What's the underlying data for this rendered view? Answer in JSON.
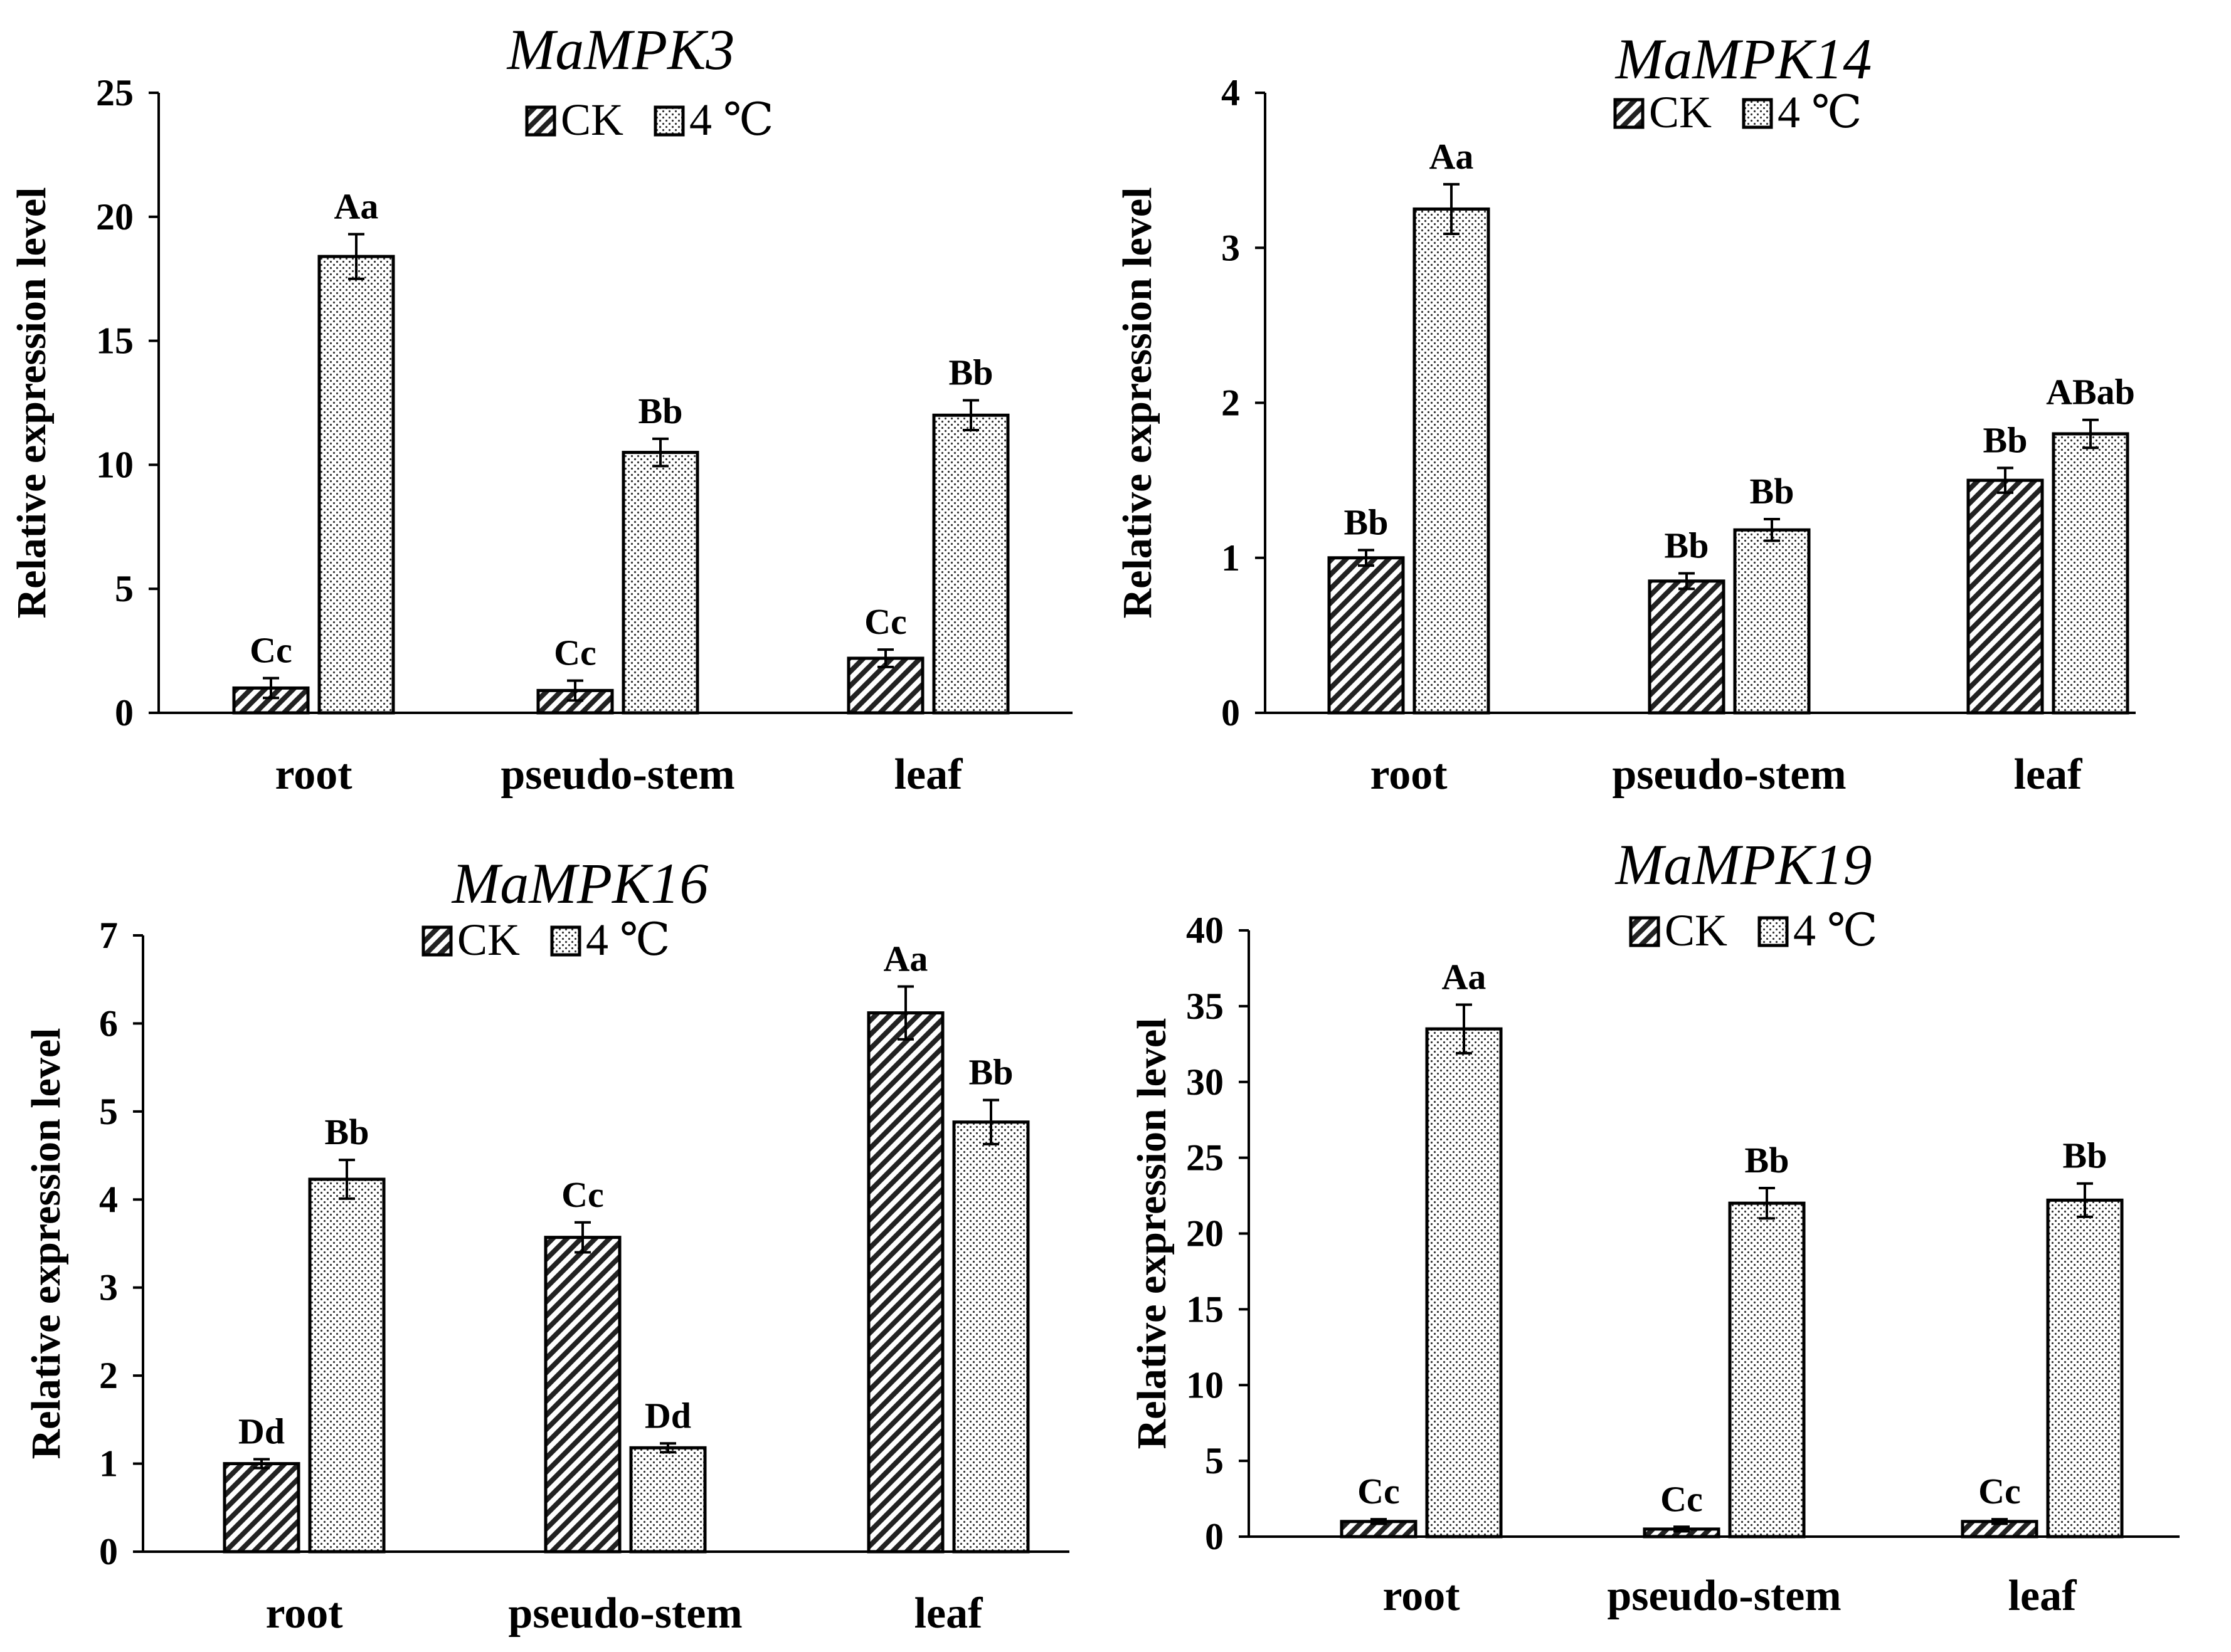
{
  "chart_data": [
    {
      "type": "bar",
      "title": "MaMPK3",
      "xlabel": "",
      "ylabel": "Relative expression level",
      "ylim": [
        0,
        25
      ],
      "yticks": [
        0,
        5,
        10,
        15,
        20,
        25
      ],
      "categories": [
        "root",
        "pseudo-stem",
        "leaf"
      ],
      "series": [
        {
          "name": "CK",
          "pattern": "hatch-diagonal",
          "values": [
            1.0,
            0.9,
            2.2
          ],
          "errors": [
            0.4,
            0.4,
            0.35
          ],
          "labels": [
            "Cc",
            "Cc",
            "Cc"
          ]
        },
        {
          "name": "4 ℃",
          "pattern": "dotted",
          "values": [
            18.4,
            10.5,
            12.0
          ],
          "errors": [
            0.9,
            0.55,
            0.6
          ],
          "labels": [
            "Aa",
            "Bb",
            "Bb"
          ]
        }
      ]
    },
    {
      "type": "bar",
      "title": "MaMPK14",
      "xlabel": "",
      "ylabel": "Relative expression level",
      "ylim": [
        0,
        4
      ],
      "yticks": [
        0,
        1,
        2,
        3,
        4
      ],
      "categories": [
        "root",
        "pseudo-stem",
        "leaf"
      ],
      "series": [
        {
          "name": "CK",
          "pattern": "hatch-diagonal",
          "values": [
            1.0,
            0.85,
            1.5
          ],
          "errors": [
            0.05,
            0.05,
            0.08
          ],
          "labels": [
            "Bb",
            "Bb",
            "Bb"
          ]
        },
        {
          "name": "4 ℃",
          "pattern": "dotted",
          "values": [
            3.25,
            1.18,
            1.8
          ],
          "errors": [
            0.16,
            0.07,
            0.09
          ],
          "labels": [
            "Aa",
            "Bb",
            "ABab"
          ]
        }
      ]
    },
    {
      "type": "bar",
      "title": "MaMPK16",
      "xlabel": "",
      "ylabel": "Relative expression level",
      "ylim": [
        0,
        7
      ],
      "yticks": [
        0,
        1,
        2,
        3,
        4,
        5,
        6,
        7
      ],
      "categories": [
        "root",
        "pseudo-stem",
        "leaf"
      ],
      "series": [
        {
          "name": "CK",
          "pattern": "hatch-diagonal",
          "values": [
            1.0,
            3.57,
            6.12
          ],
          "errors": [
            0.05,
            0.17,
            0.3
          ],
          "labels": [
            "Dd",
            "Cc",
            "Aa"
          ]
        },
        {
          "name": "4 ℃",
          "pattern": "dotted",
          "values": [
            4.23,
            1.18,
            4.88
          ],
          "errors": [
            0.22,
            0.05,
            0.25
          ],
          "labels": [
            "Bb",
            "Dd",
            "Bb"
          ]
        }
      ]
    },
    {
      "type": "bar",
      "title": "MaMPK19",
      "xlabel": "",
      "ylabel": "Relative expression level",
      "ylim": [
        0,
        40
      ],
      "yticks": [
        0,
        5,
        10,
        15,
        20,
        25,
        30,
        35,
        40
      ],
      "categories": [
        "root",
        "pseudo-stem",
        "leaf"
      ],
      "series": [
        {
          "name": "CK",
          "pattern": "hatch-diagonal",
          "values": [
            1.0,
            0.5,
            1.0
          ],
          "errors": [
            0.15,
            0.15,
            0.15
          ],
          "labels": [
            "Cc",
            "Cc",
            "Cc"
          ]
        },
        {
          "name": "4 ℃",
          "pattern": "dotted",
          "values": [
            33.5,
            22.0,
            22.2
          ],
          "errors": [
            1.6,
            1.0,
            1.1
          ],
          "labels": [
            "Aa",
            "Bb",
            "Bb"
          ]
        }
      ]
    }
  ]
}
